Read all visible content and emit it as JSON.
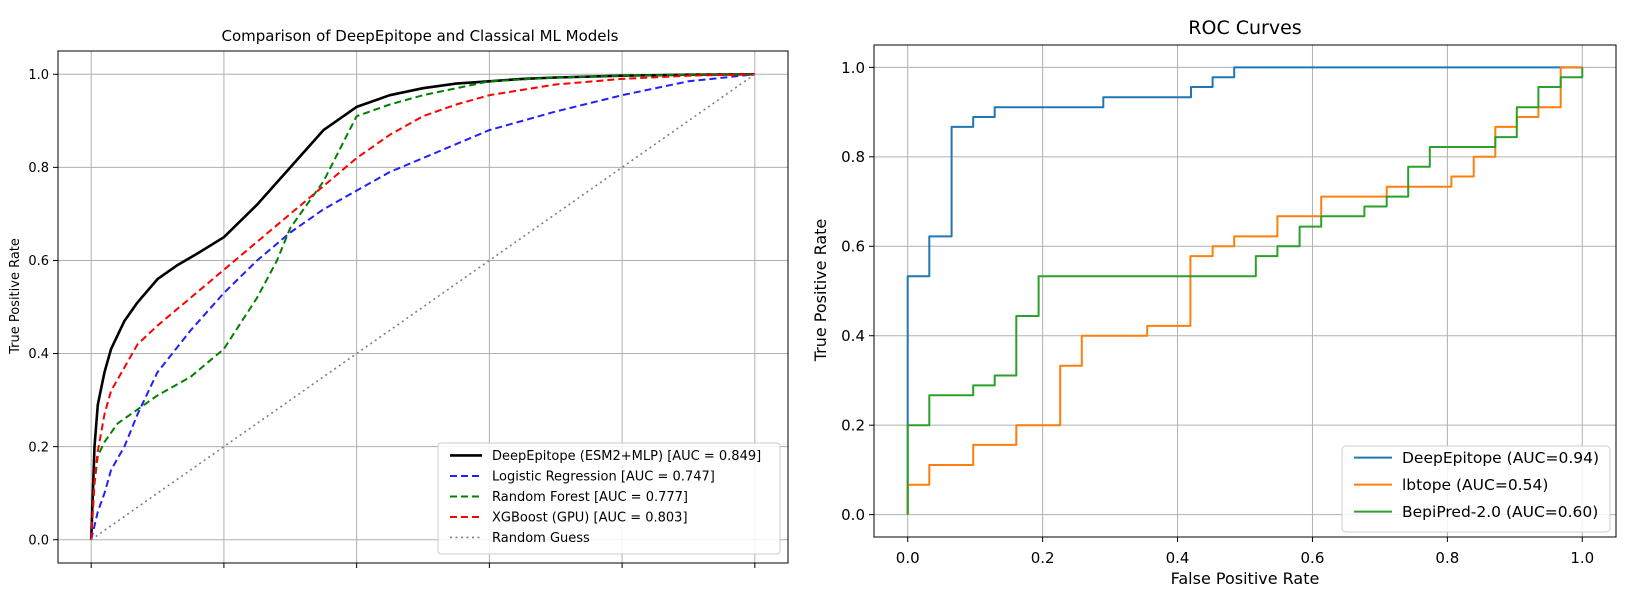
{
  "chart_data": [
    {
      "type": "line",
      "title": "Comparison of DeepEpitope and Classical ML Models",
      "xlabel": "",
      "ylabel": "True Positive Rate",
      "xlim": [
        -0.05,
        1.05
      ],
      "ylim": [
        -0.05,
        1.05
      ],
      "xticks": [
        0,
        0.2,
        0.4,
        0.6,
        0.8,
        1.0
      ],
      "xtick_labels": [
        "",
        "",
        "",
        "",
        "",
        ""
      ],
      "yticks": [
        0,
        0.2,
        0.4,
        0.6,
        0.8,
        1.0
      ],
      "ytick_labels": [
        "0.0",
        "0.2",
        "0.4",
        "0.6",
        "0.8",
        "1.0"
      ],
      "grid": true,
      "legend_position": "lower-right",
      "series": [
        {
          "name": "DeepEpitope (ESM2+MLP) [AUC = 0.849]",
          "color": "#000000",
          "dash": "solid",
          "width": 2.6,
          "x": [
            0,
            0.005,
            0.01,
            0.02,
            0.03,
            0.05,
            0.07,
            0.1,
            0.13,
            0.16,
            0.2,
            0.25,
            0.3,
            0.35,
            0.4,
            0.45,
            0.5,
            0.55,
            0.6,
            0.65,
            0.7,
            0.8,
            0.9,
            1.0
          ],
          "y": [
            0,
            0.2,
            0.29,
            0.36,
            0.41,
            0.47,
            0.51,
            0.56,
            0.59,
            0.615,
            0.65,
            0.72,
            0.8,
            0.88,
            0.93,
            0.955,
            0.97,
            0.98,
            0.985,
            0.99,
            0.993,
            0.997,
            0.999,
            1.0
          ]
        },
        {
          "name": "Logistic Regression [AUC = 0.747]",
          "color": "#1f1fff",
          "dash": "dashed",
          "width": 2.0,
          "x": [
            0,
            0.01,
            0.02,
            0.03,
            0.05,
            0.07,
            0.1,
            0.15,
            0.2,
            0.25,
            0.3,
            0.35,
            0.4,
            0.45,
            0.5,
            0.55,
            0.6,
            0.7,
            0.8,
            0.9,
            1.0
          ],
          "y": [
            0,
            0.06,
            0.1,
            0.15,
            0.2,
            0.27,
            0.36,
            0.45,
            0.53,
            0.6,
            0.66,
            0.71,
            0.75,
            0.79,
            0.82,
            0.85,
            0.88,
            0.92,
            0.955,
            0.985,
            1.0
          ]
        },
        {
          "name": "Random Forest [AUC = 0.777]",
          "color": "#008000",
          "dash": "dashed",
          "width": 2.0,
          "x": [
            0,
            0.005,
            0.01,
            0.02,
            0.04,
            0.07,
            0.1,
            0.15,
            0.2,
            0.25,
            0.28,
            0.3,
            0.35,
            0.4,
            0.45,
            0.5,
            0.6,
            0.7,
            0.8,
            0.9,
            1.0
          ],
          "y": [
            0,
            0.12,
            0.18,
            0.21,
            0.25,
            0.28,
            0.31,
            0.35,
            0.41,
            0.52,
            0.6,
            0.67,
            0.77,
            0.91,
            0.935,
            0.955,
            0.985,
            0.993,
            0.997,
            0.999,
            1.0
          ]
        },
        {
          "name": "XGBoost (GPU) [AUC = 0.803]",
          "color": "#ff0000",
          "dash": "dashed",
          "width": 2.0,
          "x": [
            0,
            0.005,
            0.01,
            0.02,
            0.03,
            0.05,
            0.07,
            0.1,
            0.15,
            0.2,
            0.25,
            0.3,
            0.35,
            0.4,
            0.45,
            0.5,
            0.55,
            0.6,
            0.7,
            0.8,
            0.9,
            1.0
          ],
          "y": [
            0,
            0.13,
            0.19,
            0.27,
            0.32,
            0.37,
            0.42,
            0.46,
            0.52,
            0.58,
            0.64,
            0.7,
            0.76,
            0.82,
            0.87,
            0.91,
            0.935,
            0.955,
            0.978,
            0.99,
            0.997,
            1.0
          ]
        },
        {
          "name": "Random Guess",
          "color": "#808080",
          "dash": "dotted",
          "width": 1.6,
          "x": [
            0,
            1.0
          ],
          "y": [
            0,
            1.0
          ]
        }
      ]
    },
    {
      "type": "line",
      "title": "ROC Curves",
      "xlabel": "False Positive Rate",
      "ylabel": "True Positive Rate",
      "xlim": [
        -0.05,
        1.05
      ],
      "ylim": [
        -0.05,
        1.05
      ],
      "xticks": [
        0,
        0.2,
        0.4,
        0.6,
        0.8,
        1.0
      ],
      "xtick_labels": [
        "0.0",
        "0.2",
        "0.4",
        "0.6",
        "0.8",
        "1.0"
      ],
      "yticks": [
        0,
        0.2,
        0.4,
        0.6,
        0.8,
        1.0
      ],
      "ytick_labels": [
        "0.0",
        "0.2",
        "0.4",
        "0.6",
        "0.8",
        "1.0"
      ],
      "grid": true,
      "legend_position": "lower-right",
      "series": [
        {
          "name": "DeepEpitope (AUC=0.94)",
          "color": "#1f77b4",
          "dash": "solid",
          "width": 2.0,
          "x": [
            0,
            0,
            0.032,
            0.032,
            0.065,
            0.065,
            0.097,
            0.097,
            0.129,
            0.129,
            0.29,
            0.29,
            0.42,
            0.42,
            0.452,
            0.452,
            0.484,
            0.484,
            1.0
          ],
          "y": [
            0,
            0.533,
            0.533,
            0.622,
            0.622,
            0.867,
            0.867,
            0.889,
            0.889,
            0.911,
            0.911,
            0.933,
            0.933,
            0.956,
            0.956,
            0.978,
            0.978,
            1.0,
            1.0
          ]
        },
        {
          "name": "lbtope (AUC=0.54)",
          "color": "#ff7f0e",
          "dash": "solid",
          "width": 2.0,
          "x": [
            0,
            0,
            0.032,
            0.032,
            0.097,
            0.097,
            0.161,
            0.161,
            0.226,
            0.226,
            0.258,
            0.258,
            0.355,
            0.355,
            0.419,
            0.419,
            0.452,
            0.452,
            0.484,
            0.484,
            0.548,
            0.548,
            0.613,
            0.613,
            0.71,
            0.71,
            0.806,
            0.806,
            0.839,
            0.839,
            0.871,
            0.871,
            0.903,
            0.903,
            0.935,
            0.935,
            0.968,
            0.968,
            1.0
          ],
          "y": [
            0,
            0.067,
            0.067,
            0.111,
            0.111,
            0.156,
            0.156,
            0.2,
            0.2,
            0.333,
            0.333,
            0.4,
            0.4,
            0.422,
            0.422,
            0.578,
            0.578,
            0.6,
            0.6,
            0.622,
            0.622,
            0.667,
            0.667,
            0.711,
            0.711,
            0.733,
            0.733,
            0.756,
            0.756,
            0.8,
            0.8,
            0.867,
            0.867,
            0.889,
            0.889,
            0.911,
            0.911,
            1.0,
            1.0
          ]
        },
        {
          "name": "BepiPred-2.0 (AUC=0.60)",
          "color": "#2ca02c",
          "dash": "solid",
          "width": 2.0,
          "x": [
            0,
            0,
            0.032,
            0.032,
            0.097,
            0.097,
            0.129,
            0.129,
            0.161,
            0.161,
            0.194,
            0.194,
            0.516,
            0.516,
            0.548,
            0.548,
            0.581,
            0.581,
            0.613,
            0.613,
            0.677,
            0.677,
            0.71,
            0.71,
            0.742,
            0.742,
            0.774,
            0.774,
            0.871,
            0.871,
            0.903,
            0.903,
            0.935,
            0.935,
            0.968,
            0.968,
            1.0,
            1.0
          ],
          "y": [
            0,
            0.2,
            0.2,
            0.267,
            0.267,
            0.289,
            0.289,
            0.311,
            0.311,
            0.444,
            0.444,
            0.533,
            0.533,
            0.578,
            0.578,
            0.6,
            0.6,
            0.644,
            0.644,
            0.667,
            0.667,
            0.689,
            0.689,
            0.711,
            0.711,
            0.778,
            0.778,
            0.822,
            0.822,
            0.844,
            0.844,
            0.911,
            0.911,
            0.956,
            0.956,
            0.978,
            0.978,
            1.0
          ]
        }
      ]
    }
  ]
}
